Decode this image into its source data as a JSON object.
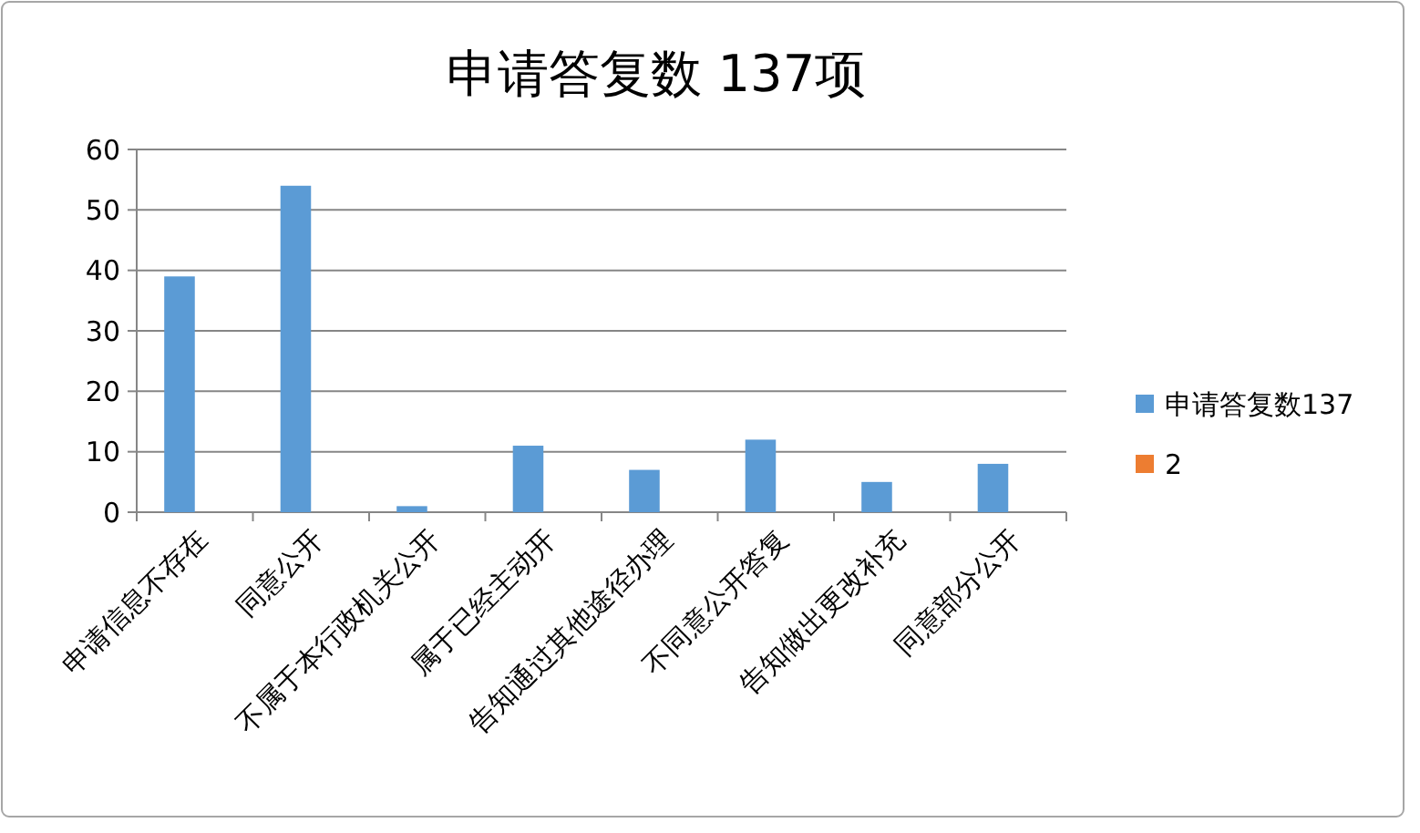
{
  "chart_data": {
    "type": "bar",
    "title": "申请答复数  137项",
    "categories": [
      "申请信息不存在",
      "同意公开",
      "不属于本行政机关公开",
      "属于已经主动开",
      "告知通过其他途径办理",
      "不同意公开答复",
      "告知做出更改补充",
      "同意部分公开"
    ],
    "series": [
      {
        "name": "申请答复数137",
        "color": "#5b9bd5",
        "values": [
          39,
          54,
          1,
          11,
          7,
          12,
          5,
          8
        ]
      },
      {
        "name": "2",
        "color": "#ed7d31",
        "values": [
          null,
          null,
          null,
          null,
          null,
          null,
          null,
          null
        ]
      }
    ],
    "ylim": [
      0,
      60
    ],
    "yticks": [
      0,
      10,
      20,
      30,
      40,
      50,
      60
    ],
    "grid": "y",
    "legend": "right"
  }
}
